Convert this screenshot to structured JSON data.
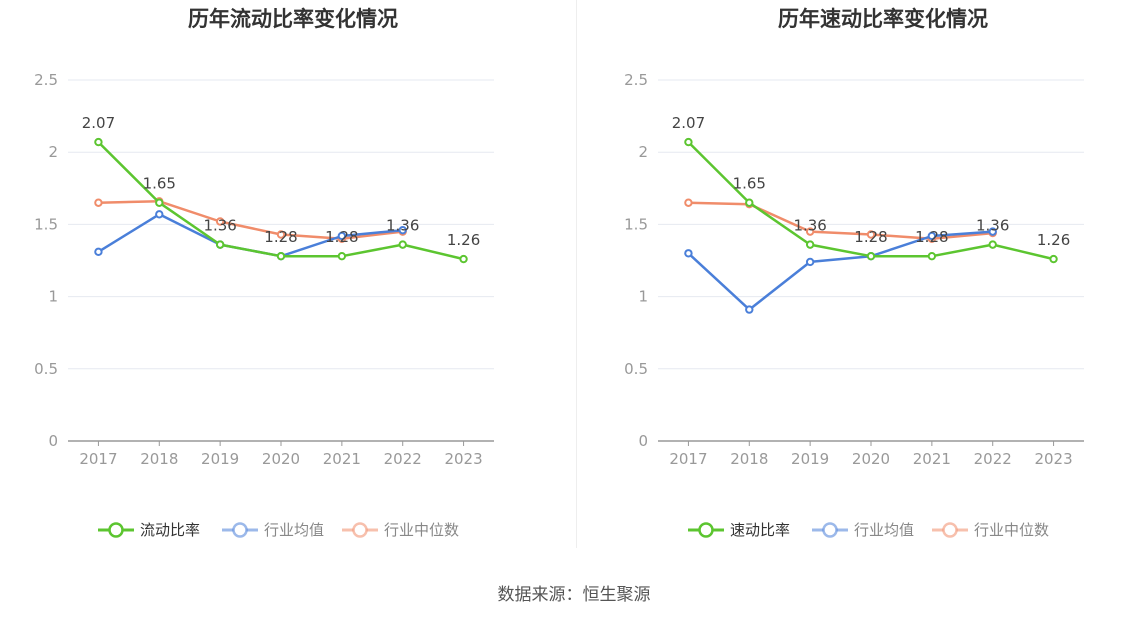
{
  "source": "数据来源：恒生聚源",
  "chart_data": [
    {
      "type": "line",
      "title": "历年流动比率变化情况",
      "categories": [
        "2017",
        "2018",
        "2019",
        "2020",
        "2021",
        "2022",
        "2023"
      ],
      "ylim": [
        0,
        2.5
      ],
      "yticks": [
        "0",
        "0.5",
        "1",
        "1.5",
        "2",
        "2.5"
      ],
      "grid": true,
      "legend_position": "bottom",
      "series": [
        {
          "name": "流动比率",
          "color": "#5cc530",
          "values": [
            2.07,
            1.65,
            1.36,
            1.28,
            1.28,
            1.36,
            1.26
          ],
          "labels": [
            "2.07",
            "1.65",
            "1.36",
            "1.28",
            "1.28",
            "1.36",
            "1.26"
          ]
        },
        {
          "name": "行业均值",
          "color": "#4a7fd9",
          "values": [
            1.31,
            1.57,
            1.36,
            1.28,
            1.42,
            1.46,
            null
          ]
        },
        {
          "name": "行业中位数",
          "color": "#f08c6a",
          "values": [
            1.65,
            1.66,
            1.52,
            1.43,
            1.4,
            1.45,
            null
          ]
        }
      ]
    },
    {
      "type": "line",
      "title": "历年速动比率变化情况",
      "categories": [
        "2017",
        "2018",
        "2019",
        "2020",
        "2021",
        "2022",
        "2023"
      ],
      "ylim": [
        0,
        2.5
      ],
      "yticks": [
        "0",
        "0.5",
        "1",
        "1.5",
        "2",
        "2.5"
      ],
      "grid": true,
      "legend_position": "bottom",
      "series": [
        {
          "name": "速动比率",
          "color": "#5cc530",
          "values": [
            2.07,
            1.65,
            1.36,
            1.28,
            1.28,
            1.36,
            1.26
          ],
          "labels": [
            "2.07",
            "1.65",
            "1.36",
            "1.28",
            "1.28",
            "1.36",
            "1.26"
          ]
        },
        {
          "name": "行业均值",
          "color": "#4a7fd9",
          "values": [
            1.3,
            0.91,
            1.24,
            1.28,
            1.42,
            1.45,
            null
          ]
        },
        {
          "name": "行业中位数",
          "color": "#f08c6a",
          "values": [
            1.65,
            1.64,
            1.45,
            1.43,
            1.4,
            1.44,
            null
          ]
        }
      ]
    }
  ]
}
